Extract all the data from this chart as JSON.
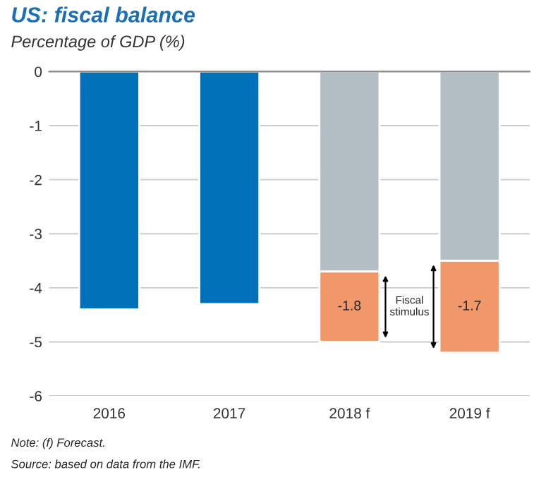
{
  "chart_data": {
    "type": "bar",
    "title": "US: fiscal balance",
    "subtitle": "Percentage of GDP (%)",
    "categories": [
      "2016",
      "2017",
      "2018 f",
      "2019 f"
    ],
    "stacked": true,
    "series": [
      {
        "color": "#0070b8",
        "values": [
          -4.4,
          -4.3,
          null,
          null
        ]
      },
      {
        "color": "#b3bec4",
        "values": [
          null,
          null,
          -3.7,
          -3.5
        ]
      },
      {
        "color": "#f0986a",
        "values": [
          null,
          null,
          -1.3,
          -1.7
        ]
      }
    ],
    "ylim": [
      -6,
      0
    ],
    "yticks": [
      -6,
      -5,
      -4,
      -3,
      -2,
      -1,
      0
    ],
    "grid": "y",
    "annotations": [
      "Fiscal stimulus",
      "Note: (f) Forecast.",
      "Source: based on data from the IMF.",
      "-1.8",
      "-1.7"
    ]
  }
}
